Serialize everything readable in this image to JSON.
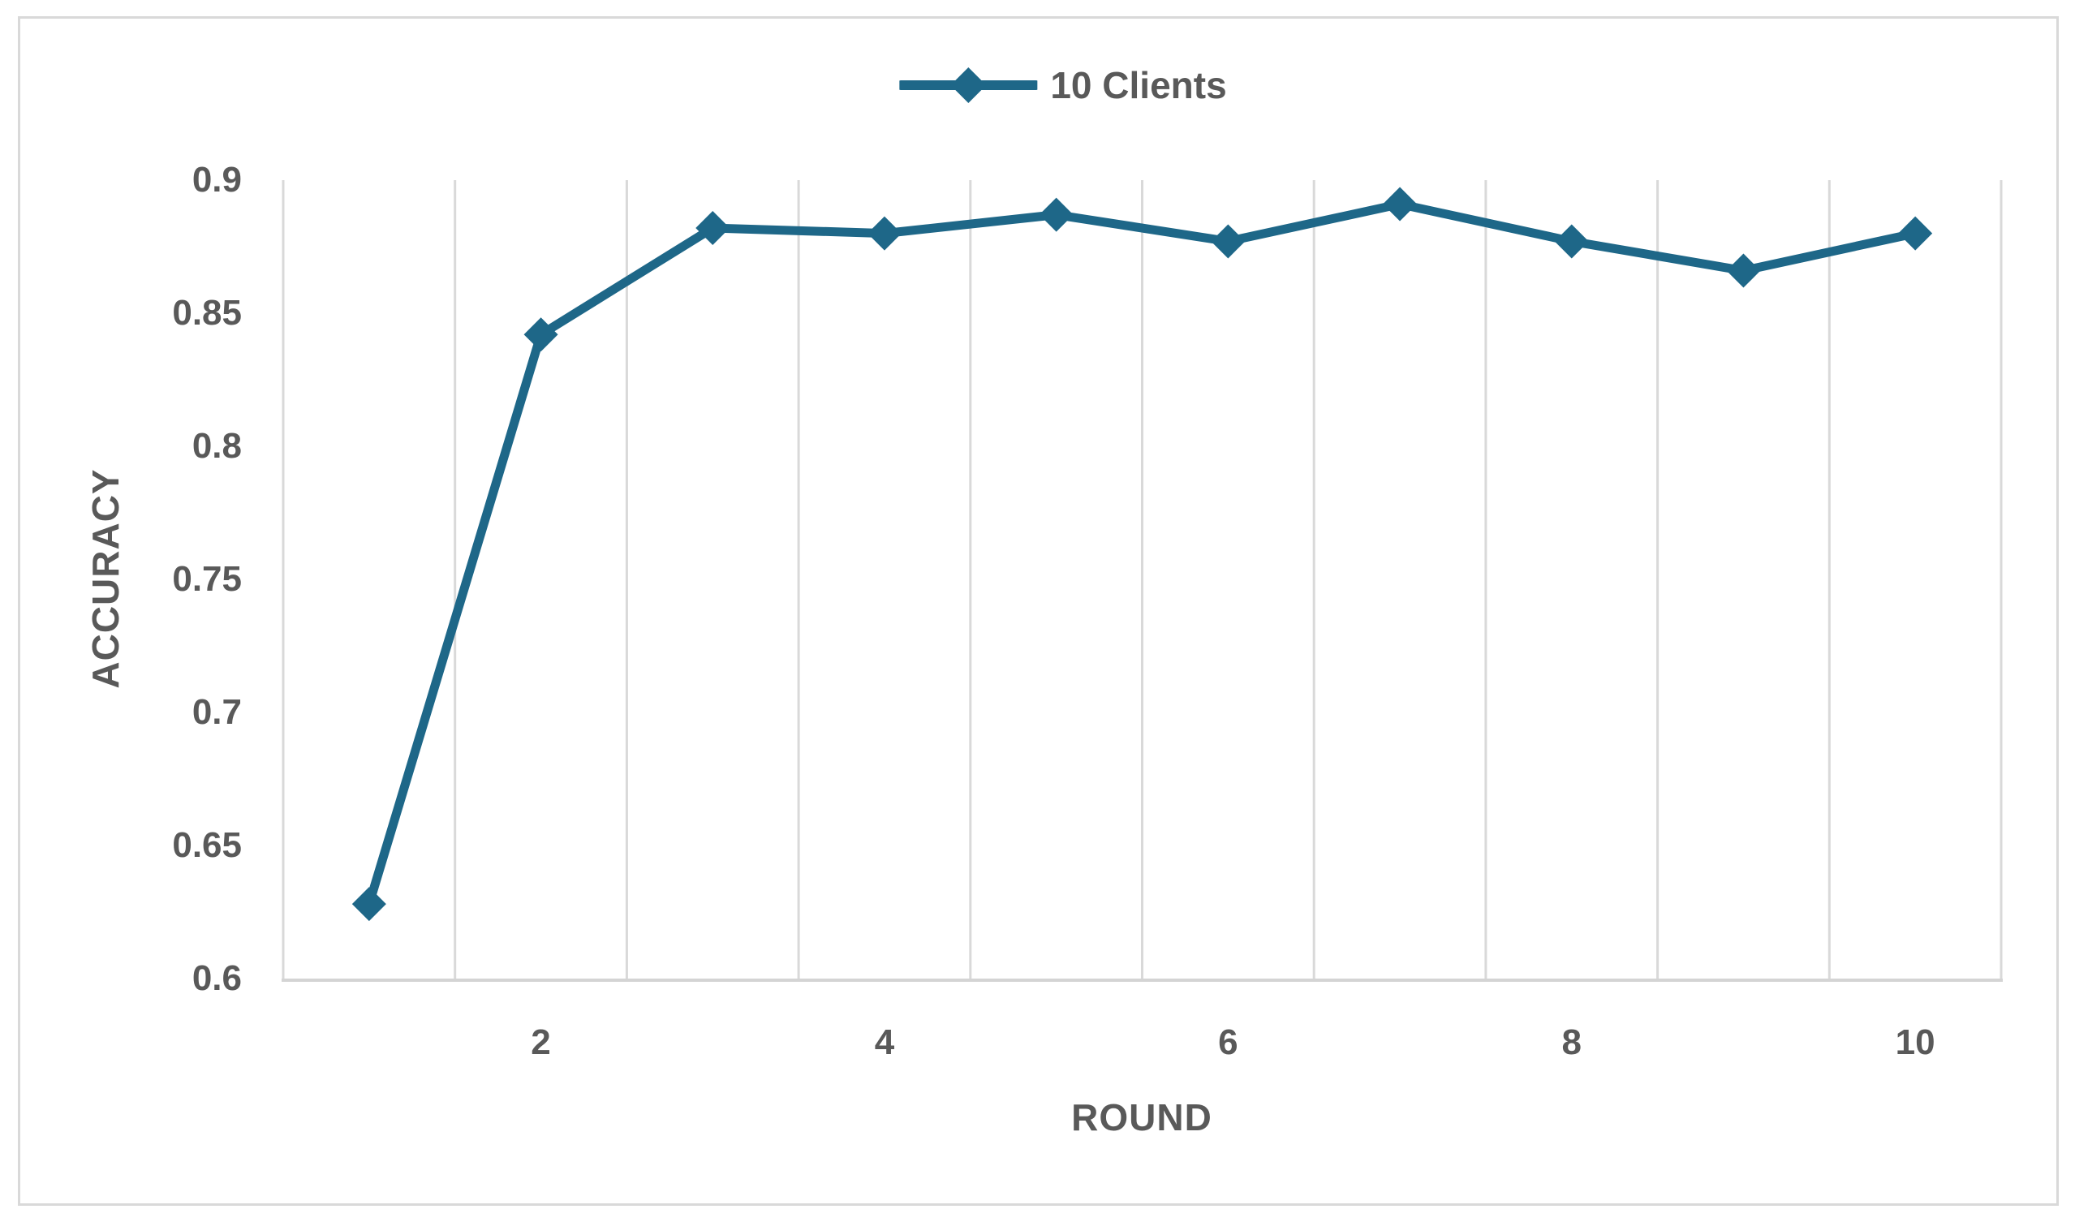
{
  "chart_data": {
    "type": "line",
    "x": [
      1,
      2,
      3,
      4,
      5,
      6,
      7,
      8,
      9,
      10
    ],
    "series": [
      {
        "name": "10 Clients",
        "values": [
          0.628,
          0.842,
          0.882,
          0.88,
          0.887,
          0.877,
          0.891,
          0.877,
          0.866,
          0.88
        ]
      }
    ],
    "xlabel": "ROUND",
    "ylabel": "ACCURACY",
    "ylim": [
      0.6,
      0.9
    ],
    "ytick_step": 0.05,
    "ytick_labels": [
      "0.9",
      "0.85",
      "0.8",
      "0.75",
      "0.7",
      "0.65",
      "0.6"
    ],
    "xtick_labels": [
      "2",
      "4",
      "6",
      "8",
      "10"
    ],
    "x_categories_count": 10,
    "grid": "vertical-only",
    "legend_position": "top-center",
    "marker": "diamond"
  },
  "legend": {
    "label": "10 Clients"
  },
  "colors": {
    "series": "#1E6788",
    "gridline": "#d9d9d9",
    "axis_line": "#d4d4d4",
    "text": "#595959",
    "frame_border": "#d9d9d9",
    "background": "#ffffff"
  }
}
